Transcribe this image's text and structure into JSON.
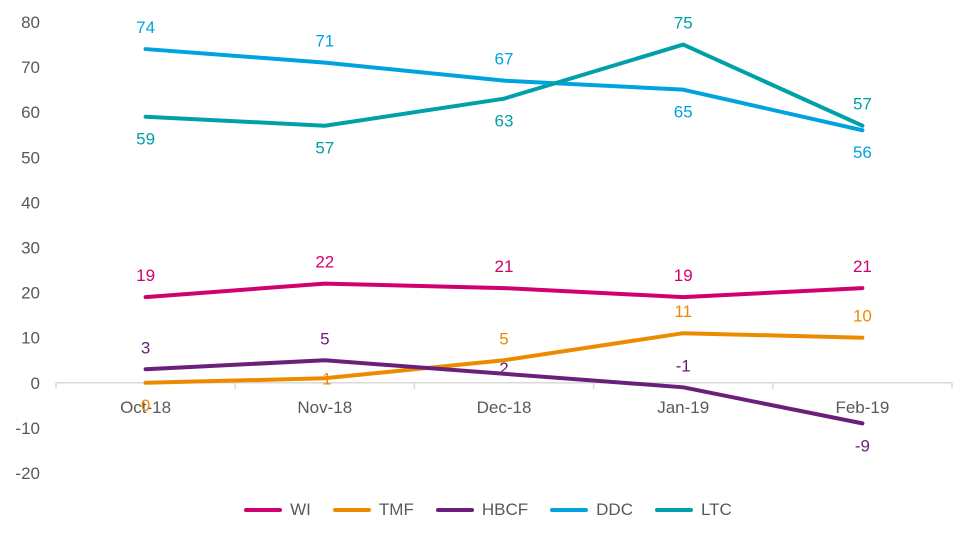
{
  "chart_data": {
    "type": "line",
    "categories": [
      "Oct-18",
      "Nov-18",
      "Dec-18",
      "Jan-19",
      "Feb-19"
    ],
    "ylim": [
      -20,
      80
    ],
    "yticks": [
      "80",
      "70",
      "60",
      "50",
      "40",
      "30",
      "20",
      "10",
      "0",
      "-10",
      "-20"
    ],
    "grid": false,
    "legend_position": "bottom",
    "series": [
      {
        "name": "WI",
        "color": "#d0006f",
        "values": [
          19,
          22,
          21,
          19,
          21
        ],
        "labels": [
          "19",
          "22",
          "21",
          "19",
          "21"
        ]
      },
      {
        "name": "TMF",
        "color": "#ed8b00",
        "values": [
          0,
          1,
          5,
          11,
          10
        ],
        "labels": [
          "0",
          "1",
          "5",
          "11",
          "10"
        ]
      },
      {
        "name": "HBCF",
        "color": "#6a1f7a",
        "values": [
          3,
          5,
          2,
          -1,
          -9
        ],
        "labels": [
          "3",
          "5",
          "2",
          "-1",
          "-9"
        ]
      },
      {
        "name": "DDC",
        "color": "#00a3e0",
        "values": [
          74,
          71,
          67,
          65,
          56
        ],
        "labels": [
          "74",
          "71",
          "67",
          "65",
          "56"
        ]
      },
      {
        "name": "LTC",
        "color": "#00a0a8",
        "values": [
          59,
          57,
          63,
          75,
          57
        ],
        "labels": [
          "59",
          "57",
          "63",
          "75",
          "57"
        ]
      }
    ]
  }
}
